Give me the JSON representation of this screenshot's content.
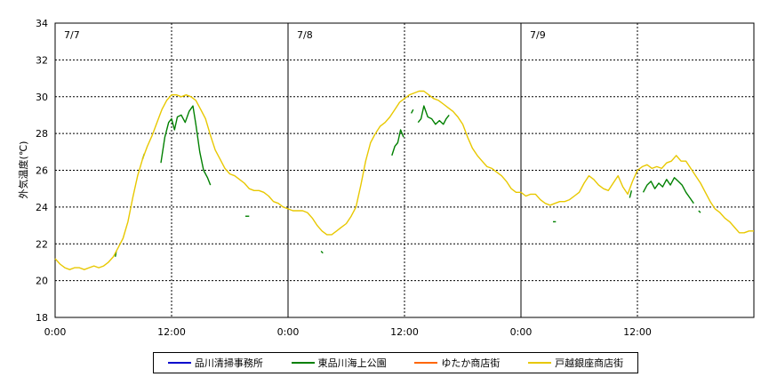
{
  "chart_data": {
    "type": "line",
    "title": "",
    "xlabel": "",
    "ylabel": "外気温度(℃)",
    "ylim": [
      18,
      34
    ],
    "yticks": [
      "18",
      "20",
      "22",
      "24",
      "26",
      "28",
      "30",
      "32",
      "34"
    ],
    "xlim": [
      0,
      72
    ],
    "xticks": [
      "0:00",
      "12:00",
      "0:00",
      "12:00",
      "0:00",
      "12:00"
    ],
    "xtick_hours": [
      0,
      12,
      24,
      36,
      48,
      60
    ],
    "day_labels": [
      "7/7",
      "7/8",
      "7/9"
    ],
    "grid": "dotted",
    "legend_position": "bottom",
    "series": [
      {
        "name": "品川清掃事務所",
        "color": "#0000cc",
        "segments": []
      },
      {
        "name": "東品川海上公園",
        "color": "#008000",
        "segments": [
          [
            [
              6.2,
              21.3
            ],
            [
              6.3,
              21.6
            ]
          ],
          [
            [
              9.0,
              26.6
            ],
            [
              9.2,
              26.9
            ]
          ],
          [
            [
              10.9,
              26.4
            ],
            [
              11.3,
              27.8
            ],
            [
              11.7,
              28.6
            ],
            [
              12.0,
              28.8
            ],
            [
              12.3,
              28.2
            ],
            [
              12.6,
              28.9
            ],
            [
              13.0,
              29.0
            ],
            [
              13.4,
              28.6
            ],
            [
              13.8,
              29.2
            ],
            [
              14.2,
              29.5
            ],
            [
              14.5,
              28.5
            ],
            [
              14.9,
              27.0
            ],
            [
              15.3,
              26.0
            ],
            [
              15.7,
              25.6
            ],
            [
              16.0,
              25.2
            ]
          ],
          [
            [
              19.6,
              23.5
            ],
            [
              20.0,
              23.5
            ]
          ],
          [
            [
              27.4,
              21.6
            ],
            [
              27.6,
              21.5
            ]
          ],
          [
            [
              34.7,
              26.8
            ],
            [
              35.0,
              27.3
            ],
            [
              35.3,
              27.5
            ],
            [
              35.6,
              28.2
            ],
            [
              35.9,
              27.8
            ]
          ],
          [
            [
              36.7,
              29.1
            ],
            [
              36.9,
              29.3
            ]
          ],
          [
            [
              37.4,
              28.6
            ],
            [
              37.7,
              28.8
            ],
            [
              38.0,
              29.5
            ],
            [
              38.4,
              28.9
            ],
            [
              38.8,
              28.8
            ],
            [
              39.2,
              28.5
            ],
            [
              39.6,
              28.7
            ],
            [
              40.0,
              28.5
            ],
            [
              40.3,
              28.8
            ],
            [
              40.6,
              29.0
            ]
          ],
          [
            [
              51.3,
              23.2
            ],
            [
              51.6,
              23.2
            ]
          ],
          [
            [
              59.2,
              24.5
            ],
            [
              59.4,
              24.9
            ]
          ],
          [
            [
              60.6,
              24.8
            ],
            [
              61.0,
              25.2
            ],
            [
              61.4,
              25.4
            ],
            [
              61.8,
              25.0
            ],
            [
              62.2,
              25.3
            ],
            [
              62.6,
              25.1
            ],
            [
              63.0,
              25.5
            ],
            [
              63.4,
              25.2
            ],
            [
              63.8,
              25.6
            ],
            [
              64.2,
              25.4
            ],
            [
              64.6,
              25.2
            ],
            [
              65.0,
              24.8
            ],
            [
              65.4,
              24.5
            ],
            [
              65.8,
              24.2
            ]
          ],
          [
            [
              66.3,
              23.8
            ],
            [
              66.5,
              23.7
            ]
          ]
        ]
      },
      {
        "name": "ゆたか商店街",
        "color": "#ff6600",
        "segments": []
      },
      {
        "name": "戸越銀座商店街",
        "color": "#e8c800",
        "segments": [
          [
            [
              0.0,
              21.2
            ],
            [
              0.5,
              20.9
            ],
            [
              1.0,
              20.7
            ],
            [
              1.5,
              20.6
            ],
            [
              2.0,
              20.7
            ],
            [
              2.5,
              20.7
            ],
            [
              3.0,
              20.6
            ],
            [
              3.5,
              20.7
            ],
            [
              4.0,
              20.8
            ],
            [
              4.5,
              20.7
            ],
            [
              5.0,
              20.8
            ],
            [
              5.5,
              21.0
            ],
            [
              6.0,
              21.3
            ],
            [
              6.5,
              21.8
            ],
            [
              7.0,
              22.3
            ],
            [
              7.5,
              23.2
            ],
            [
              8.0,
              24.5
            ],
            [
              8.5,
              25.7
            ],
            [
              9.0,
              26.6
            ],
            [
              9.5,
              27.3
            ],
            [
              10.0,
              27.9
            ],
            [
              10.5,
              28.6
            ],
            [
              11.0,
              29.3
            ],
            [
              11.5,
              29.8
            ],
            [
              12.0,
              30.1
            ],
            [
              12.5,
              30.1
            ],
            [
              13.0,
              30.0
            ],
            [
              13.5,
              30.1
            ],
            [
              14.0,
              30.0
            ],
            [
              14.5,
              29.8
            ],
            [
              15.0,
              29.3
            ],
            [
              15.5,
              28.8
            ],
            [
              16.0,
              27.9
            ],
            [
              16.5,
              27.1
            ],
            [
              17.0,
              26.6
            ],
            [
              17.5,
              26.1
            ],
            [
              18.0,
              25.8
            ],
            [
              18.5,
              25.7
            ],
            [
              19.0,
              25.5
            ],
            [
              19.5,
              25.3
            ],
            [
              20.0,
              25.0
            ],
            [
              20.5,
              24.9
            ],
            [
              21.0,
              24.9
            ],
            [
              21.5,
              24.8
            ],
            [
              22.0,
              24.6
            ],
            [
              22.5,
              24.3
            ],
            [
              23.0,
              24.2
            ],
            [
              23.5,
              24.0
            ],
            [
              24.0,
              23.9
            ],
            [
              24.5,
              23.8
            ],
            [
              25.0,
              23.8
            ],
            [
              25.5,
              23.8
            ],
            [
              26.0,
              23.7
            ],
            [
              26.5,
              23.4
            ],
            [
              27.0,
              23.0
            ],
            [
              27.5,
              22.7
            ],
            [
              28.0,
              22.5
            ],
            [
              28.5,
              22.5
            ],
            [
              29.0,
              22.7
            ],
            [
              29.5,
              22.9
            ],
            [
              30.0,
              23.1
            ],
            [
              30.5,
              23.5
            ],
            [
              31.0,
              24.0
            ],
            [
              31.5,
              25.2
            ],
            [
              32.0,
              26.5
            ],
            [
              32.5,
              27.5
            ],
            [
              33.0,
              28.0
            ],
            [
              33.5,
              28.4
            ],
            [
              34.0,
              28.6
            ],
            [
              34.5,
              28.9
            ],
            [
              35.0,
              29.3
            ],
            [
              35.5,
              29.7
            ],
            [
              36.0,
              29.9
            ],
            [
              36.5,
              30.1
            ],
            [
              37.0,
              30.2
            ],
            [
              37.5,
              30.3
            ],
            [
              38.0,
              30.3
            ],
            [
              38.5,
              30.1
            ],
            [
              39.0,
              29.9
            ],
            [
              39.5,
              29.8
            ],
            [
              40.0,
              29.6
            ],
            [
              40.5,
              29.4
            ],
            [
              41.0,
              29.2
            ],
            [
              41.5,
              28.9
            ],
            [
              42.0,
              28.5
            ],
            [
              42.5,
              27.8
            ],
            [
              43.0,
              27.2
            ],
            [
              43.5,
              26.8
            ],
            [
              44.0,
              26.5
            ],
            [
              44.5,
              26.2
            ],
            [
              45.0,
              26.1
            ],
            [
              45.5,
              25.9
            ],
            [
              46.0,
              25.7
            ],
            [
              46.5,
              25.4
            ],
            [
              47.0,
              25.0
            ],
            [
              47.5,
              24.8
            ],
            [
              48.0,
              24.8
            ],
            [
              48.5,
              24.6
            ],
            [
              49.0,
              24.7
            ],
            [
              49.5,
              24.7
            ],
            [
              50.0,
              24.4
            ],
            [
              50.5,
              24.2
            ],
            [
              51.0,
              24.1
            ],
            [
              51.5,
              24.2
            ],
            [
              52.0,
              24.3
            ],
            [
              52.5,
              24.3
            ],
            [
              53.0,
              24.4
            ],
            [
              53.5,
              24.6
            ],
            [
              54.0,
              24.8
            ],
            [
              54.5,
              25.3
            ],
            [
              55.0,
              25.7
            ],
            [
              55.5,
              25.5
            ],
            [
              56.0,
              25.2
            ],
            [
              56.5,
              25.0
            ],
            [
              57.0,
              24.9
            ],
            [
              57.5,
              25.3
            ],
            [
              58.0,
              25.7
            ],
            [
              58.5,
              25.1
            ],
            [
              59.0,
              24.7
            ],
            [
              59.5,
              25.4
            ],
            [
              60.0,
              26.0
            ],
            [
              60.5,
              26.2
            ],
            [
              61.0,
              26.3
            ],
            [
              61.5,
              26.1
            ],
            [
              62.0,
              26.2
            ],
            [
              62.5,
              26.1
            ],
            [
              63.0,
              26.4
            ],
            [
              63.5,
              26.5
            ],
            [
              64.0,
              26.8
            ],
            [
              64.5,
              26.5
            ],
            [
              65.0,
              26.5
            ],
            [
              65.5,
              26.1
            ],
            [
              66.0,
              25.7
            ],
            [
              66.5,
              25.3
            ],
            [
              67.0,
              24.8
            ],
            [
              67.5,
              24.3
            ],
            [
              68.0,
              23.9
            ],
            [
              68.5,
              23.7
            ],
            [
              69.0,
              23.4
            ],
            [
              69.5,
              23.2
            ],
            [
              70.0,
              22.9
            ],
            [
              70.5,
              22.6
            ],
            [
              71.0,
              22.6
            ],
            [
              71.5,
              22.7
            ],
            [
              72.0,
              22.7
            ]
          ]
        ]
      }
    ]
  }
}
